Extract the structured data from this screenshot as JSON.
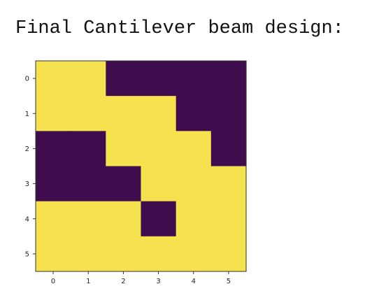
{
  "heading": "Final Cantilever beam design:",
  "colors": {
    "filled": "#f6e24f",
    "empty": "#3f0d4e",
    "frame": "#333333",
    "text": "#222222"
  },
  "chart_data": {
    "type": "heatmap",
    "title": "",
    "xlabel": "",
    "ylabel": "",
    "x_ticks": [
      "0",
      "1",
      "2",
      "3",
      "4",
      "5"
    ],
    "y_ticks": [
      "0",
      "1",
      "2",
      "3",
      "4",
      "5"
    ],
    "xlim": [
      -0.5,
      5.5
    ],
    "ylim": [
      5.5,
      -0.5
    ],
    "grid": false,
    "colormap": "viridis",
    "value_range": [
      0,
      1
    ],
    "values": [
      [
        1,
        1,
        0,
        0,
        0,
        0
      ],
      [
        1,
        1,
        1,
        1,
        0,
        0
      ],
      [
        0,
        0,
        1,
        1,
        1,
        0
      ],
      [
        0,
        0,
        0,
        1,
        1,
        1
      ],
      [
        1,
        1,
        1,
        0,
        1,
        1
      ],
      [
        1,
        1,
        1,
        1,
        1,
        1
      ]
    ]
  }
}
